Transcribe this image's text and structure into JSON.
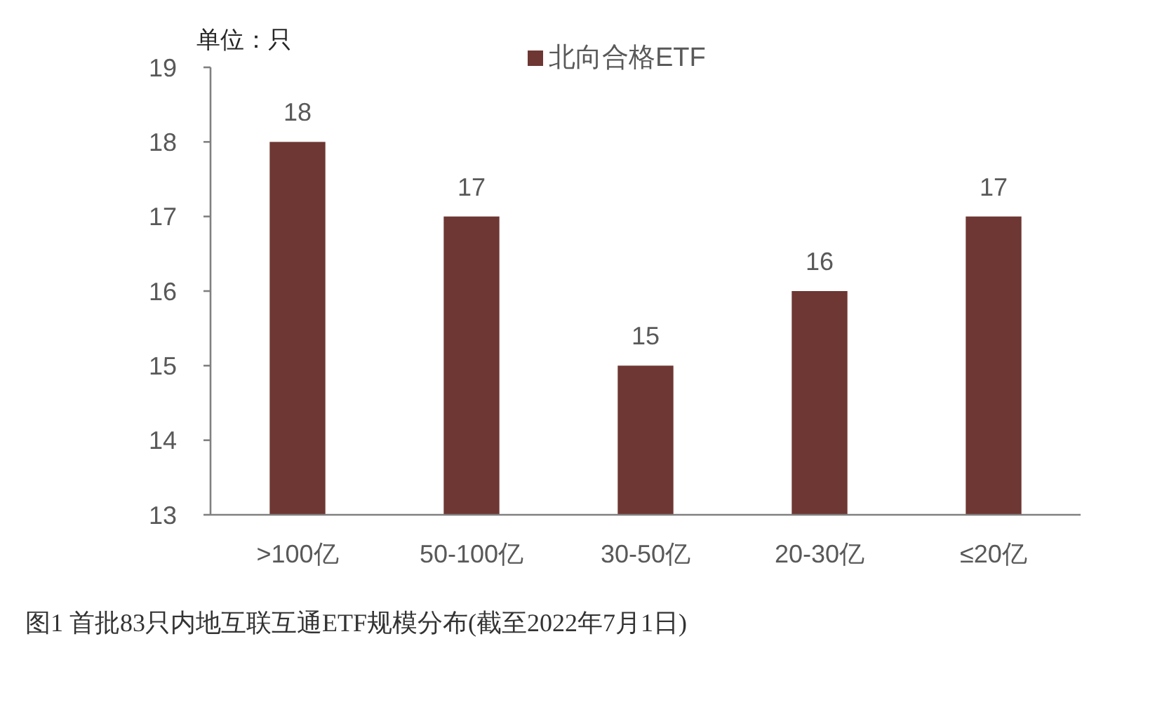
{
  "chart_data": {
    "type": "bar",
    "title": "图1 首批83只内地互联互通ETF规模分布(截至2022年7月1日)",
    "ylabel": "单位：只",
    "categories": [
      ">100亿",
      "50-100亿",
      "30-50亿",
      "20-30亿",
      "≤20亿"
    ],
    "series": [
      {
        "name": "北向合格ETF",
        "color": "#6e3733",
        "values": [
          18,
          17,
          15,
          16,
          17
        ]
      }
    ],
    "ylim": [
      13,
      19
    ],
    "yticks": [
      13,
      14,
      15,
      16,
      17,
      18,
      19
    ],
    "grid": false,
    "legend": "top",
    "data_labels": true
  }
}
